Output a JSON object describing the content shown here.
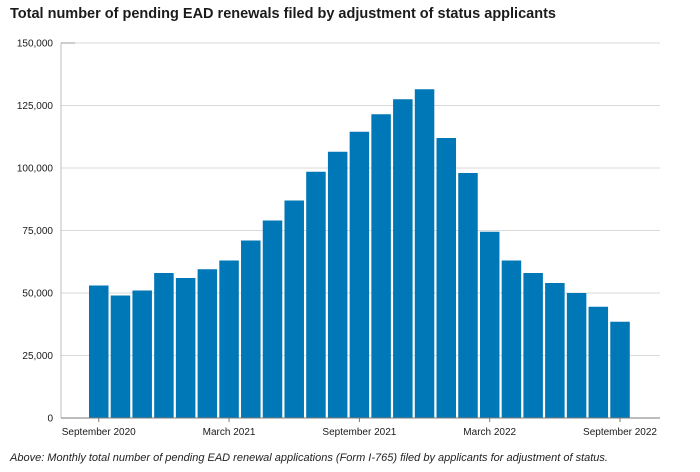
{
  "chart_data": {
    "type": "bar",
    "title": "Total number of pending EAD renewals filed by adjustment of status applicants",
    "caption": "Above: Monthly total number of pending EAD renewal applications (Form I-765) filed by applicants for adjustment of status.",
    "xlabel": "",
    "ylabel": "",
    "ylim": [
      0,
      150000
    ],
    "yticks": [
      0,
      25000,
      50000,
      75000,
      100000,
      125000,
      150000
    ],
    "ytick_labels": [
      "0",
      "25,000",
      "50,000",
      "75,000",
      "100,000",
      "125,000",
      "150,000"
    ],
    "grid": true,
    "legend": "none",
    "bar_color": "#0077b6",
    "categories": [
      "September 2020",
      "October 2020",
      "November 2020",
      "December 2020",
      "January 2021",
      "February 2021",
      "March 2021",
      "April 2021",
      "May 2021",
      "June 2021",
      "July 2021",
      "August 2021",
      "September 2021",
      "October 2021",
      "November 2021",
      "December 2021",
      "January 2022",
      "February 2022",
      "March 2022",
      "April 2022",
      "May 2022",
      "June 2022",
      "July 2022",
      "August 2022",
      "September 2022"
    ],
    "values": [
      53000,
      49000,
      51000,
      58000,
      56000,
      59500,
      63000,
      71000,
      79000,
      87000,
      98500,
      106500,
      114500,
      121500,
      127500,
      131500,
      112000,
      98000,
      74500,
      63000,
      58000,
      54000,
      50000,
      44500,
      38500
    ],
    "xtick_labels": [
      {
        "index": 0,
        "label": "September 2020"
      },
      {
        "index": 6,
        "label": "March 2021"
      },
      {
        "index": 12,
        "label": "September 2021"
      },
      {
        "index": 18,
        "label": "March 2022"
      },
      {
        "index": 24,
        "label": "September 2022"
      }
    ]
  }
}
